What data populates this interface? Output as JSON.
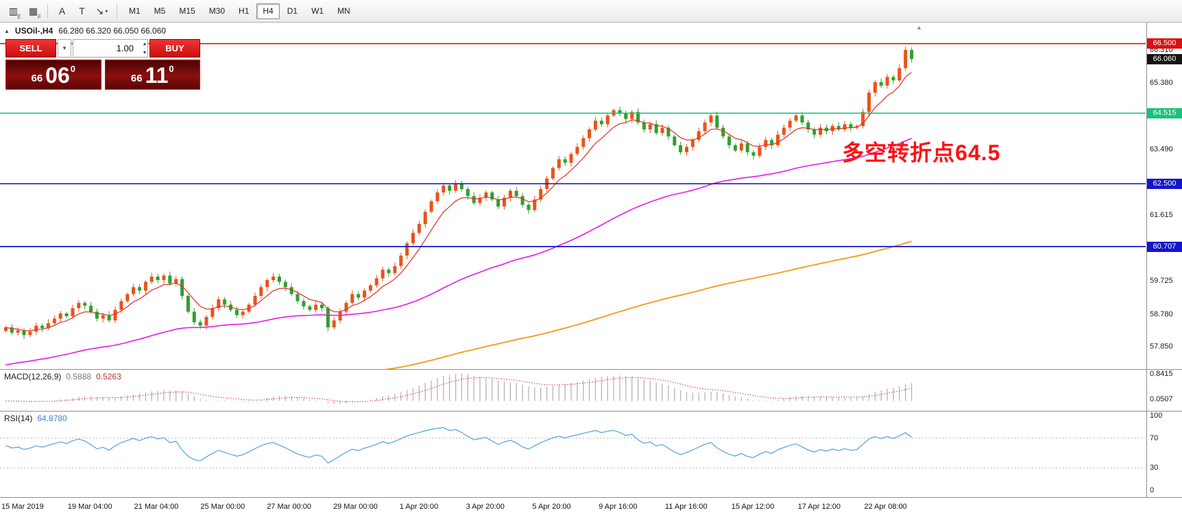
{
  "icons": {
    "header_marker": "▲",
    "caret_down": "▾",
    "spin_up": "▴",
    "spin_down": "▾",
    "scroll_marker": "▲"
  },
  "toolbar": {
    "icons": [
      {
        "name": "candlestick-chart-icon",
        "glyph": "▥",
        "sub": "E",
        "sep": false,
        "caret": false
      },
      {
        "name": "indicator-grid-icon",
        "glyph": "▦",
        "sub": "F",
        "sep": true,
        "caret": false
      },
      {
        "name": "text-label-icon",
        "glyph": "A",
        "sub": "",
        "sep": false,
        "caret": false
      },
      {
        "name": "text-box-icon",
        "glyph": "T",
        "sub": "",
        "sep": false,
        "caret": false
      },
      {
        "name": "drawing-tools-icon",
        "glyph": "↘",
        "sub": "",
        "sep": false,
        "caret": true
      }
    ],
    "timeframes": [
      {
        "label": "M1",
        "active": false
      },
      {
        "label": "M5",
        "active": false
      },
      {
        "label": "M15",
        "active": false
      },
      {
        "label": "M30",
        "active": false
      },
      {
        "label": "H1",
        "active": false
      },
      {
        "label": "H4",
        "active": true
      },
      {
        "label": "D1",
        "active": false
      },
      {
        "label": "W1",
        "active": false
      },
      {
        "label": "MN",
        "active": false
      }
    ]
  },
  "header": {
    "symbol": "USOil-,H4",
    "ohlc": "66.280 66.320 66.050 66.060"
  },
  "trade_panel": {
    "sell_label": "SELL",
    "buy_label": "BUY",
    "volume": "1.00",
    "sell_price": {
      "small": "66",
      "big": "06",
      "sup": "0"
    },
    "buy_price": {
      "small": "66",
      "big": "11",
      "sup": "0"
    }
  },
  "chart_data": {
    "type": "candlestick",
    "symbol": "USOil-",
    "timeframe": "H4",
    "ohlc_header": {
      "open": "66.280",
      "high": "66.320",
      "low": "66.050",
      "close": "66.060"
    },
    "price_top": 67.1,
    "price_bottom": 57.21,
    "closes": [
      58.4,
      58.25,
      58.32,
      58.18,
      58.28,
      58.45,
      58.38,
      58.52,
      58.65,
      58.8,
      58.72,
      58.95,
      59.1,
      59.02,
      58.85,
      58.65,
      58.75,
      58.6,
      58.9,
      59.15,
      59.35,
      59.55,
      59.45,
      59.7,
      59.85,
      59.75,
      59.88,
      59.65,
      59.78,
      59.3,
      58.85,
      58.55,
      58.45,
      58.7,
      58.95,
      59.2,
      59.05,
      58.9,
      58.75,
      58.85,
      59.05,
      59.3,
      59.55,
      59.75,
      59.85,
      59.7,
      59.55,
      59.35,
      59.15,
      59.0,
      58.9,
      59.05,
      58.95,
      58.4,
      58.6,
      58.85,
      59.1,
      59.35,
      59.25,
      59.45,
      59.6,
      59.8,
      60.05,
      59.95,
      60.15,
      60.45,
      60.8,
      61.1,
      61.35,
      61.7,
      62.0,
      62.25,
      62.45,
      62.3,
      62.5,
      62.35,
      62.15,
      61.95,
      62.1,
      62.25,
      62.05,
      61.85,
      62.1,
      62.3,
      62.15,
      61.9,
      61.75,
      62.05,
      62.35,
      62.65,
      62.95,
      63.2,
      63.1,
      63.35,
      63.55,
      63.8,
      64.05,
      64.3,
      64.2,
      64.45,
      64.6,
      64.5,
      64.35,
      64.55,
      64.25,
      64.05,
      64.2,
      63.95,
      64.1,
      63.85,
      63.6,
      63.4,
      63.55,
      63.75,
      64.0,
      64.25,
      64.45,
      64.1,
      63.85,
      63.6,
      63.45,
      63.65,
      63.4,
      63.3,
      63.55,
      63.75,
      63.6,
      63.9,
      64.1,
      64.3,
      64.45,
      64.25,
      64.05,
      63.9,
      64.1,
      64.0,
      64.15,
      64.05,
      64.2,
      64.1,
      64.15,
      64.55,
      65.1,
      65.4,
      65.3,
      65.55,
      65.45,
      65.8,
      66.32,
      66.06
    ],
    "candle_up_color": "#e8541a",
    "candle_down_color": "#2da12e",
    "moving_averages": [
      {
        "name": "ma-fast-red",
        "color": "#e03020",
        "alpha": 0.25,
        "seed": null,
        "width": 1.2
      },
      {
        "name": "ma-mid-magenta",
        "color": "#e818e8",
        "alpha": 0.03,
        "seed": 57.3,
        "width": 1.6
      },
      {
        "name": "ma-slow-orange",
        "color": "#efa32a",
        "alpha": 0.0095,
        "seed": 55.6,
        "width": 2
      }
    ],
    "lines": [
      {
        "label": "66.500",
        "price": 66.5,
        "color": "#dd1010",
        "line": true
      },
      {
        "label": "66.060",
        "price": 66.06,
        "color": "#141414",
        "line": false
      },
      {
        "label": "64.515",
        "price": 64.515,
        "color": "#17c37e",
        "line": true
      },
      {
        "label": "62.500",
        "price": 62.5,
        "color": "#1414cf",
        "line": true
      },
      {
        "label": "60.707",
        "price": 60.707,
        "color": "#1414cf",
        "line": true
      }
    ],
    "axis_ticks": [
      {
        "label": "66.310",
        "price": 66.31
      },
      {
        "label": "65.380",
        "price": 65.38
      },
      {
        "label": "63.490",
        "price": 63.49
      },
      {
        "label": "61.615",
        "price": 61.615
      },
      {
        "label": "59.725",
        "price": 59.725
      },
      {
        "label": "58.780",
        "price": 58.78
      },
      {
        "label": "57.850",
        "price": 57.85
      }
    ],
    "time_labels": [
      "15 Mar 2019",
      "19 Mar 04:00",
      "21 Mar 04:00",
      "25 Mar 00:00",
      "27 Mar 00:00",
      "29 Mar 00:00",
      "1 Apr 20:00",
      "3 Apr 20:00",
      "5 Apr 20:00",
      "9 Apr 16:00",
      "11 Apr 16:00",
      "15 Apr 12:00",
      "17 Apr 12:00",
      "22 Apr 08:00"
    ],
    "macd": {
      "label": "MACD(12,26,9)",
      "value_main": "0.5888",
      "value_signal": "0.5263",
      "fast": 12,
      "slow": 26,
      "signal": 9,
      "ticks": [
        {
          "label": "0.8415",
          "value": 0.8415
        },
        {
          "label": "0.0507",
          "value": 0.0507
        }
      ],
      "hist_color": "#b4b4b4",
      "signal_color": "#cc3232",
      "vmin": -0.18,
      "vmax": 0.88
    },
    "rsi": {
      "label": "RSI(14)",
      "value": "64.8780",
      "period": 14,
      "ticks": [
        {
          "label": "100",
          "value": 100
        },
        {
          "label": "70",
          "value": 70
        },
        {
          "label": "30",
          "value": 30
        },
        {
          "label": "0",
          "value": 0
        }
      ],
      "levels": [
        70,
        30
      ],
      "line_color": "#4da3e0"
    },
    "annotation": {
      "text": "多空转折点64.5",
      "color": "#ff1010",
      "x_frac": 0.735,
      "price": 63.42,
      "font_size": 32
    }
  }
}
